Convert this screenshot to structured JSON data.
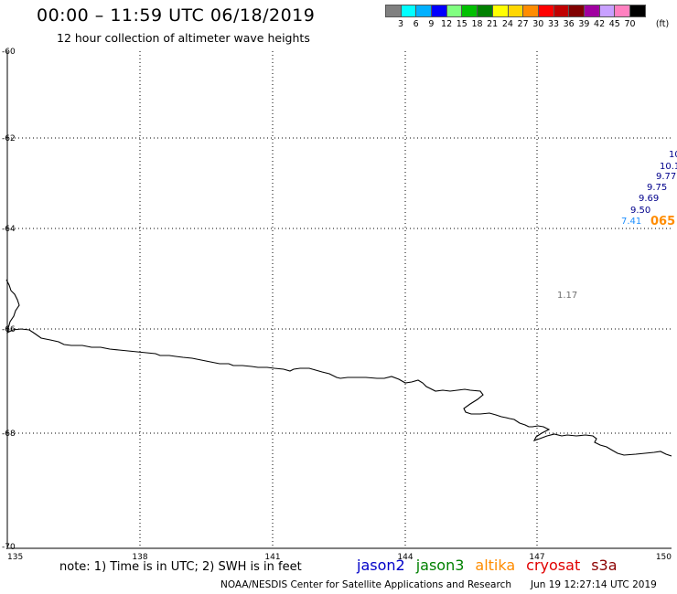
{
  "header": {
    "title": "00:00 – 11:59 UTC 06/18/2019",
    "subtitle": "12 hour collection of altimeter wave heights"
  },
  "legend": {
    "unit": "(ft)",
    "bins": [
      {
        "color": "#808080",
        "label": "3"
      },
      {
        "color": "#00ffff",
        "label": "6"
      },
      {
        "color": "#00b0ff",
        "label": "9"
      },
      {
        "color": "#0000ff",
        "label": "12"
      },
      {
        "color": "#80ff80",
        "label": "15"
      },
      {
        "color": "#00c000",
        "label": "18"
      },
      {
        "color": "#008000",
        "label": "21"
      },
      {
        "color": "#ffff00",
        "label": "24"
      },
      {
        "color": "#ffd700",
        "label": "27"
      },
      {
        "color": "#ff8c00",
        "label": "30"
      },
      {
        "color": "#ff0000",
        "label": "33"
      },
      {
        "color": "#c00000",
        "label": "36"
      },
      {
        "color": "#800000",
        "label": "39"
      },
      {
        "color": "#a000a0",
        "label": "42"
      },
      {
        "color": "#c8a0ff",
        "label": "45"
      },
      {
        "color": "#ff80c0",
        "label": "70"
      },
      {
        "color": "#000000",
        "label": ""
      }
    ]
  },
  "map": {
    "lat_labels": [
      "-60",
      "-62",
      "-64",
      "-66",
      "-68",
      "-70"
    ],
    "lon_labels": [
      "135",
      "138",
      "141",
      "144",
      "147",
      "150"
    ],
    "observations": [
      {
        "text": "10",
        "color": "#00008b"
      },
      {
        "text": "10.1",
        "color": "#00008b"
      },
      {
        "text": "9.77",
        "color": "#00008b"
      },
      {
        "text": "9.75",
        "color": "#00008b"
      },
      {
        "text": "9.69",
        "color": "#00008b"
      },
      {
        "text": "9.50",
        "color": "#00008b"
      },
      {
        "text": "7.41",
        "color": "#1e90ff"
      },
      {
        "text": "065",
        "color": "#ff8c00"
      },
      {
        "text": "1.17",
        "color": "#707070"
      }
    ]
  },
  "footer": {
    "note": "note: 1) Time is in UTC; 2) SWH is in feet",
    "satellites": [
      {
        "name": "jason2",
        "color": "#0000c8"
      },
      {
        "name": "jason3",
        "color": "#008000"
      },
      {
        "name": "altika",
        "color": "#ff8c00"
      },
      {
        "name": "cryosat",
        "color": "#e00000"
      },
      {
        "name": "s3a",
        "color": "#8b0000"
      }
    ],
    "credit": "NOAA/NESDIS Center for Satellite Applications and Research",
    "timestamp": "Jun 19 12:27:14 UTC 2019"
  }
}
